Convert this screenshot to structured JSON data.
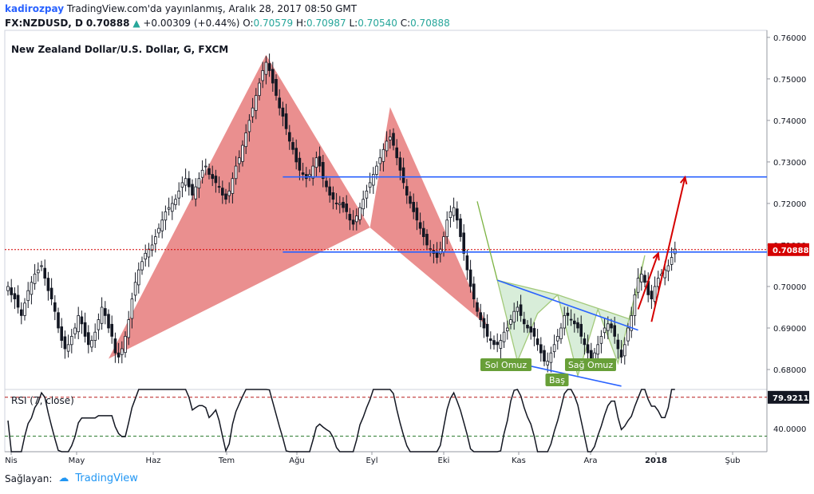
{
  "header": {
    "author": "kadirozpay",
    "published": "TradingView.com'da yayınlanmış, Aralık 28, 2017 08:50 GMT",
    "symbol": "FX:NZDUSD, D",
    "last": "0.70888",
    "change_arrow": "▲",
    "change": "+0.00309 (+0.44%)",
    "o_label": "O:",
    "o_value": "0.70579",
    "h_label": "H:",
    "h_value": "0.70987",
    "l_label": "L:",
    "l_value": "0.70540",
    "c_label": "C:",
    "c_value": "0.70888"
  },
  "footer": {
    "label": "Sağlayan:",
    "brand": "TradingView"
  },
  "chart_data": [
    {
      "type": "candlestick",
      "title": "New Zealand Dollar/U.S. Dollar, G, FXCM",
      "ylim": [
        0.6752,
        0.7617
      ],
      "yticks": [
        "0.76000",
        "0.75000",
        "0.74000",
        "0.73000",
        "0.72000",
        "0.71000",
        "0.70000",
        "0.69000",
        "0.68000"
      ],
      "xticks": [
        "Nis",
        "May",
        "Haz",
        "Tem",
        "Ağu",
        "Eyl",
        "Eki",
        "Kas",
        "Ara",
        "2018",
        "Şub"
      ],
      "last_price_label": "0.70888",
      "last_price": 0.70888,
      "colors": {
        "up": "#26a69a",
        "down": "#ef5350",
        "pattern": "#e57373",
        "hs": "#7cb342",
        "level": "#2962ff",
        "arrow": "#d50000"
      },
      "series_close": [
        0.7,
        0.698,
        0.697,
        0.695,
        0.693,
        0.696,
        0.699,
        0.701,
        0.703,
        0.704,
        0.705,
        0.702,
        0.699,
        0.697,
        0.694,
        0.69,
        0.687,
        0.685,
        0.686,
        0.688,
        0.69,
        0.693,
        0.691,
        0.688,
        0.686,
        0.687,
        0.689,
        0.692,
        0.695,
        0.693,
        0.69,
        0.688,
        0.684,
        0.683,
        0.685,
        0.688,
        0.692,
        0.697,
        0.701,
        0.704,
        0.706,
        0.708,
        0.709,
        0.71,
        0.712,
        0.714,
        0.716,
        0.718,
        0.719,
        0.72,
        0.721,
        0.723,
        0.725,
        0.726,
        0.724,
        0.722,
        0.724,
        0.726,
        0.728,
        0.729,
        0.727,
        0.726,
        0.725,
        0.724,
        0.722,
        0.721,
        0.723,
        0.726,
        0.729,
        0.731,
        0.734,
        0.737,
        0.74,
        0.743,
        0.746,
        0.749,
        0.752,
        0.754,
        0.752,
        0.749,
        0.746,
        0.743,
        0.741,
        0.738,
        0.735,
        0.733,
        0.73,
        0.728,
        0.727,
        0.726,
        0.727,
        0.729,
        0.731,
        0.729,
        0.726,
        0.724,
        0.722,
        0.721,
        0.72,
        0.72,
        0.719,
        0.718,
        0.716,
        0.715,
        0.717,
        0.719,
        0.721,
        0.723,
        0.725,
        0.727,
        0.729,
        0.731,
        0.733,
        0.735,
        0.736,
        0.734,
        0.731,
        0.728,
        0.725,
        0.722,
        0.72,
        0.718,
        0.716,
        0.714,
        0.712,
        0.71,
        0.709,
        0.708,
        0.707,
        0.709,
        0.712,
        0.716,
        0.718,
        0.719,
        0.716,
        0.712,
        0.708,
        0.704,
        0.7,
        0.697,
        0.694,
        0.692,
        0.69,
        0.688,
        0.687,
        0.686,
        0.686,
        0.687,
        0.689,
        0.69,
        0.692,
        0.694,
        0.695,
        0.693,
        0.691,
        0.69,
        0.689,
        0.688,
        0.686,
        0.684,
        0.682,
        0.682,
        0.684,
        0.686,
        0.688,
        0.69,
        0.693,
        0.693,
        0.692,
        0.691,
        0.69,
        0.688,
        0.686,
        0.684,
        0.682,
        0.684,
        0.686,
        0.688,
        0.69,
        0.691,
        0.69,
        0.688,
        0.685,
        0.683,
        0.686,
        0.69,
        0.693,
        0.698,
        0.702,
        0.703,
        0.701,
        0.698,
        0.697,
        0.7,
        0.702,
        0.703,
        0.704,
        0.705,
        0.707,
        0.709
      ],
      "rsi": {
        "label": "RSI (7, close)",
        "value_label": "79.9211",
        "ylim": [
          10,
          90
        ],
        "ticks": [
          "40.0000"
        ],
        "levels": [
          80,
          30
        ]
      },
      "annotations": {
        "sol_omuz": "Sol Omuz",
        "bas": "Baş",
        "sag_omuz": "Sağ Omuz",
        "levels": [
          0.7264,
          0.7083
        ]
      }
    }
  ]
}
